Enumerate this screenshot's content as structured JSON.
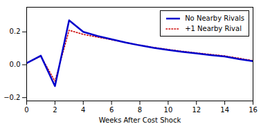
{
  "chart_data": {
    "type": "line",
    "xlabel": "Weeks After Cost Shock",
    "x": [
      0,
      1,
      2,
      3,
      4,
      5,
      6,
      7,
      8,
      9,
      10,
      11,
      12,
      13,
      14,
      15,
      16
    ],
    "series": [
      {
        "name": "No Nearby Rivals",
        "color": "#0000cc",
        "line_style": "solid",
        "values": [
          0.01,
          0.055,
          -0.13,
          0.27,
          0.2,
          0.175,
          0.155,
          0.135,
          0.118,
          0.103,
          0.09,
          0.079,
          0.069,
          0.059,
          0.05,
          0.035,
          0.022
        ]
      },
      {
        "name": "+1 Nearby Rival",
        "color": "#cc0000",
        "line_style": "dotted",
        "values": [
          0.01,
          0.052,
          -0.1,
          0.21,
          0.185,
          0.168,
          0.152,
          0.135,
          0.119,
          0.105,
          0.093,
          0.082,
          0.072,
          0.063,
          0.054,
          0.04,
          0.025
        ]
      }
    ],
    "xlim": [
      0,
      16
    ],
    "xticks": [
      0,
      2,
      4,
      6,
      8,
      10,
      12,
      14,
      16
    ],
    "ylim": [
      -0.22,
      0.35
    ],
    "yticks": [
      -0.2,
      {
        "value": 0,
        "label": "0.0"
      },
      0.2
    ],
    "grid": false,
    "legend": "upper right"
  }
}
